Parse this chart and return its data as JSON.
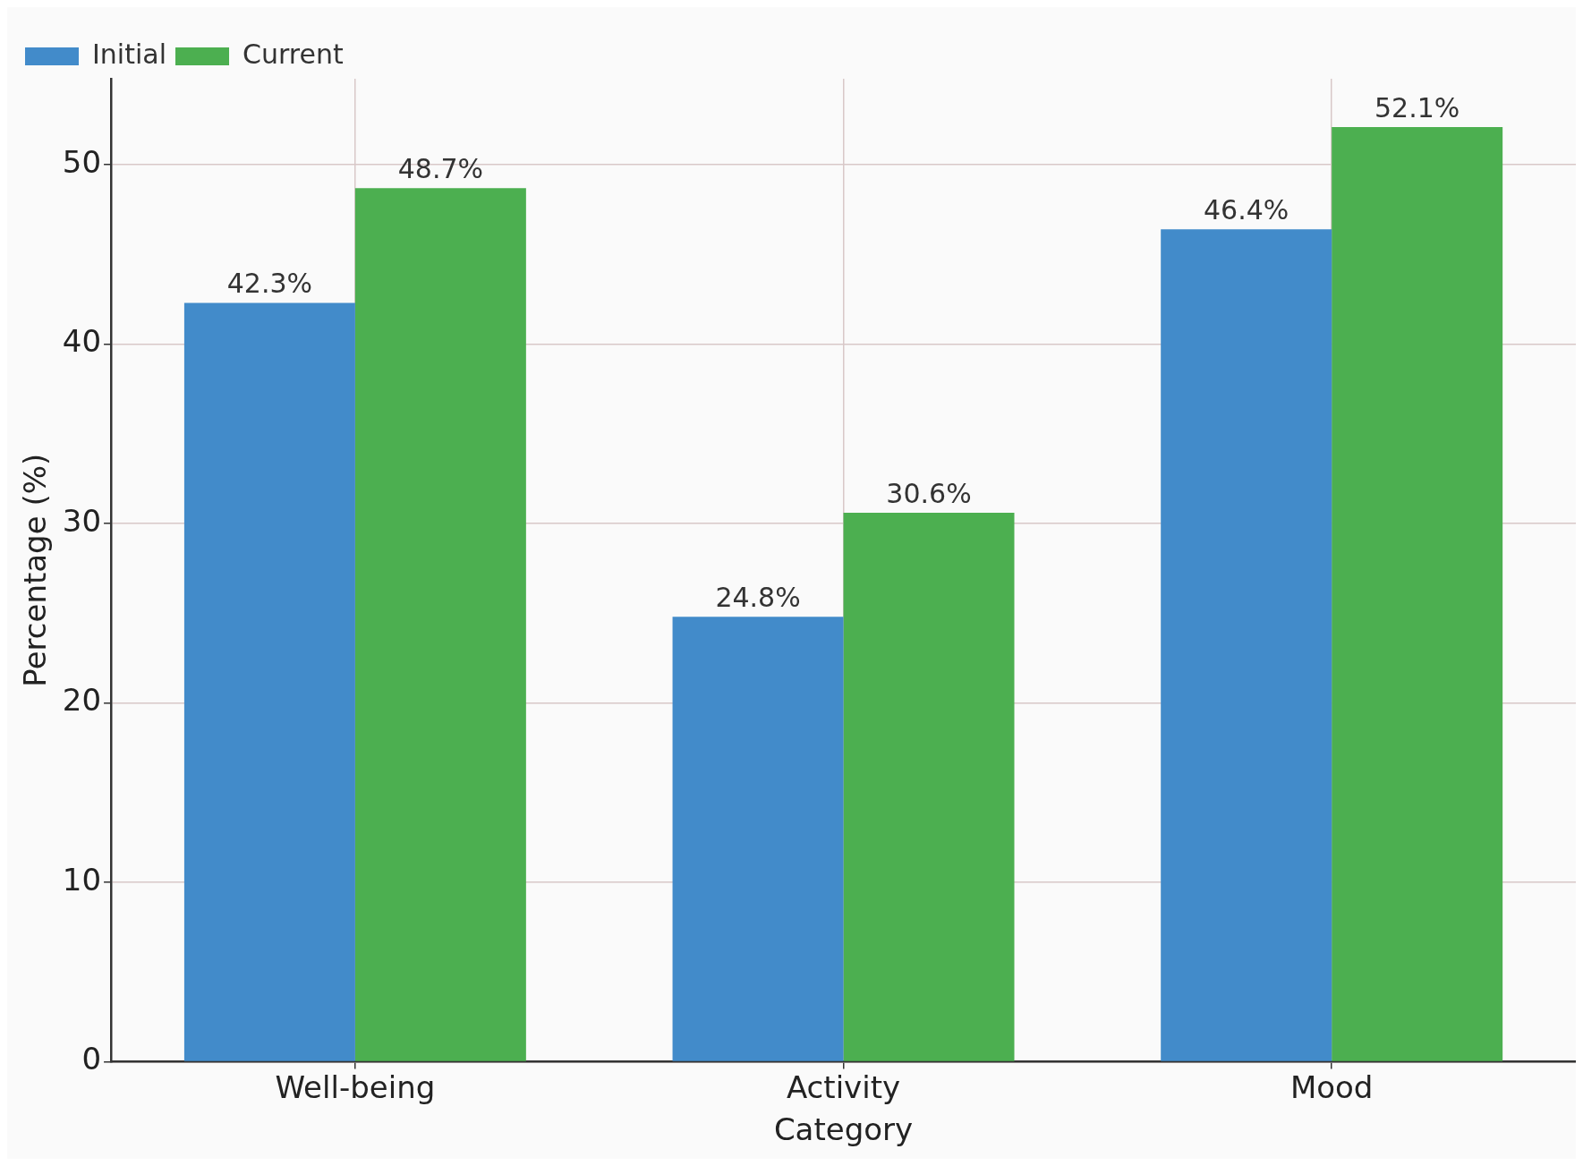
{
  "chart_data": {
    "type": "bar",
    "xlabel": "Category",
    "ylabel": "Percentage (%)",
    "categories": [
      "Well-being",
      "Activity",
      "Mood"
    ],
    "series": [
      {
        "name": "Initial",
        "color": "#428bca",
        "values": [
          42.3,
          24.8,
          46.4
        ],
        "value_labels": [
          "42.3%",
          "24.8%",
          "46.4%"
        ]
      },
      {
        "name": "Current",
        "color": "#4caf50",
        "values": [
          48.7,
          30.6,
          52.1
        ],
        "value_labels": [
          "48.7%",
          "30.6%",
          "52.1%"
        ]
      }
    ],
    "ylim": [
      0,
      54.8
    ],
    "yticks": [
      0,
      10,
      20,
      30,
      40,
      50
    ],
    "grid": true,
    "legend": "top left"
  }
}
